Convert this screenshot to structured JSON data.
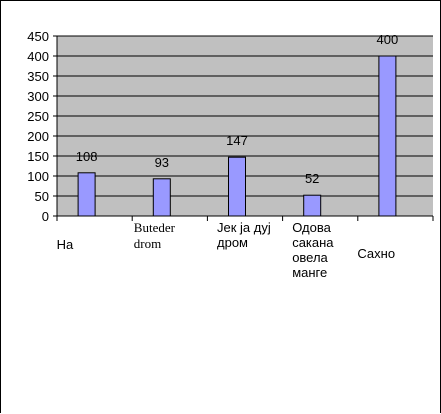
{
  "chart_data": {
    "type": "bar",
    "categories": [
      "На",
      "Buteder\ndrom",
      "Јек ја дуј\nдром",
      "Одова\nсакана\nовела\nманге",
      "Сахно"
    ],
    "values": [
      108,
      93,
      147,
      52,
      400
    ],
    "data_labels": [
      "108",
      "93",
      "147",
      "52",
      "400"
    ],
    "y_ticks": [
      "0",
      "50",
      "100",
      "150",
      "200",
      "250",
      "300",
      "350",
      "400",
      "450"
    ],
    "ylim": [
      0,
      450
    ],
    "title": "",
    "xlabel": "",
    "ylabel": "",
    "grid": "horizontal",
    "legend": "none",
    "colors": {
      "bar": "#9999ff",
      "plot_area": "#c0c0c0",
      "gridline": "#000000"
    }
  }
}
